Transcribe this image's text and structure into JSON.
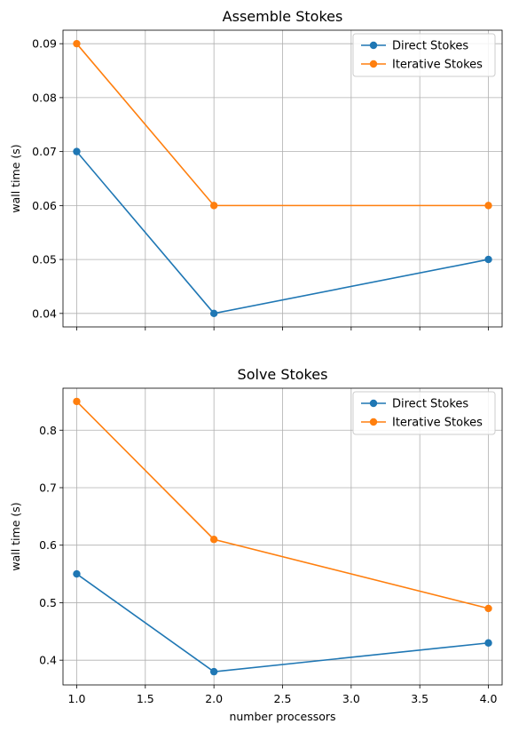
{
  "chart_data": [
    {
      "type": "line",
      "title": "Assemble Stokes",
      "xlabel": "",
      "ylabel": "wall time (s)",
      "x": [
        1.0,
        2.0,
        4.0
      ],
      "xlim": [
        0.9,
        4.1
      ],
      "ylim": [
        0.0375,
        0.0925
      ],
      "xticks": [
        1.0,
        1.5,
        2.0,
        2.5,
        3.0,
        3.5,
        4.0
      ],
      "xtick_labels_visible": false,
      "yticks": [
        0.04,
        0.05,
        0.06,
        0.07,
        0.08,
        0.09
      ],
      "ytick_labels": [
        "0.04",
        "0.05",
        "0.06",
        "0.07",
        "0.08",
        "0.09"
      ],
      "grid": true,
      "legend_loc": "upper right",
      "series": [
        {
          "name": "Direct Stokes",
          "values": [
            0.07,
            0.04,
            0.05
          ],
          "color": "#1f77b4"
        },
        {
          "name": "Iterative Stokes",
          "values": [
            0.09,
            0.06,
            0.06
          ],
          "color": "#ff7f0e"
        }
      ]
    },
    {
      "type": "line",
      "title": "Solve Stokes",
      "xlabel": "number processors",
      "ylabel": "wall time (s)",
      "x": [
        1.0,
        2.0,
        4.0
      ],
      "xlim": [
        0.9,
        4.1
      ],
      "ylim": [
        0.357,
        0.873
      ],
      "xticks": [
        1.0,
        1.5,
        2.0,
        2.5,
        3.0,
        3.5,
        4.0
      ],
      "xtick_labels": [
        "1.0",
        "1.5",
        "2.0",
        "2.5",
        "3.0",
        "3.5",
        "4.0"
      ],
      "xtick_labels_visible": true,
      "yticks": [
        0.4,
        0.5,
        0.6,
        0.7,
        0.8
      ],
      "ytick_labels": [
        "0.4",
        "0.5",
        "0.6",
        "0.7",
        "0.8"
      ],
      "grid": true,
      "legend_loc": "upper right",
      "series": [
        {
          "name": "Direct Stokes",
          "values": [
            0.55,
            0.38,
            0.43
          ],
          "color": "#1f77b4"
        },
        {
          "name": "Iterative Stokes",
          "values": [
            0.85,
            0.61,
            0.49
          ],
          "color": "#ff7f0e"
        }
      ]
    }
  ]
}
